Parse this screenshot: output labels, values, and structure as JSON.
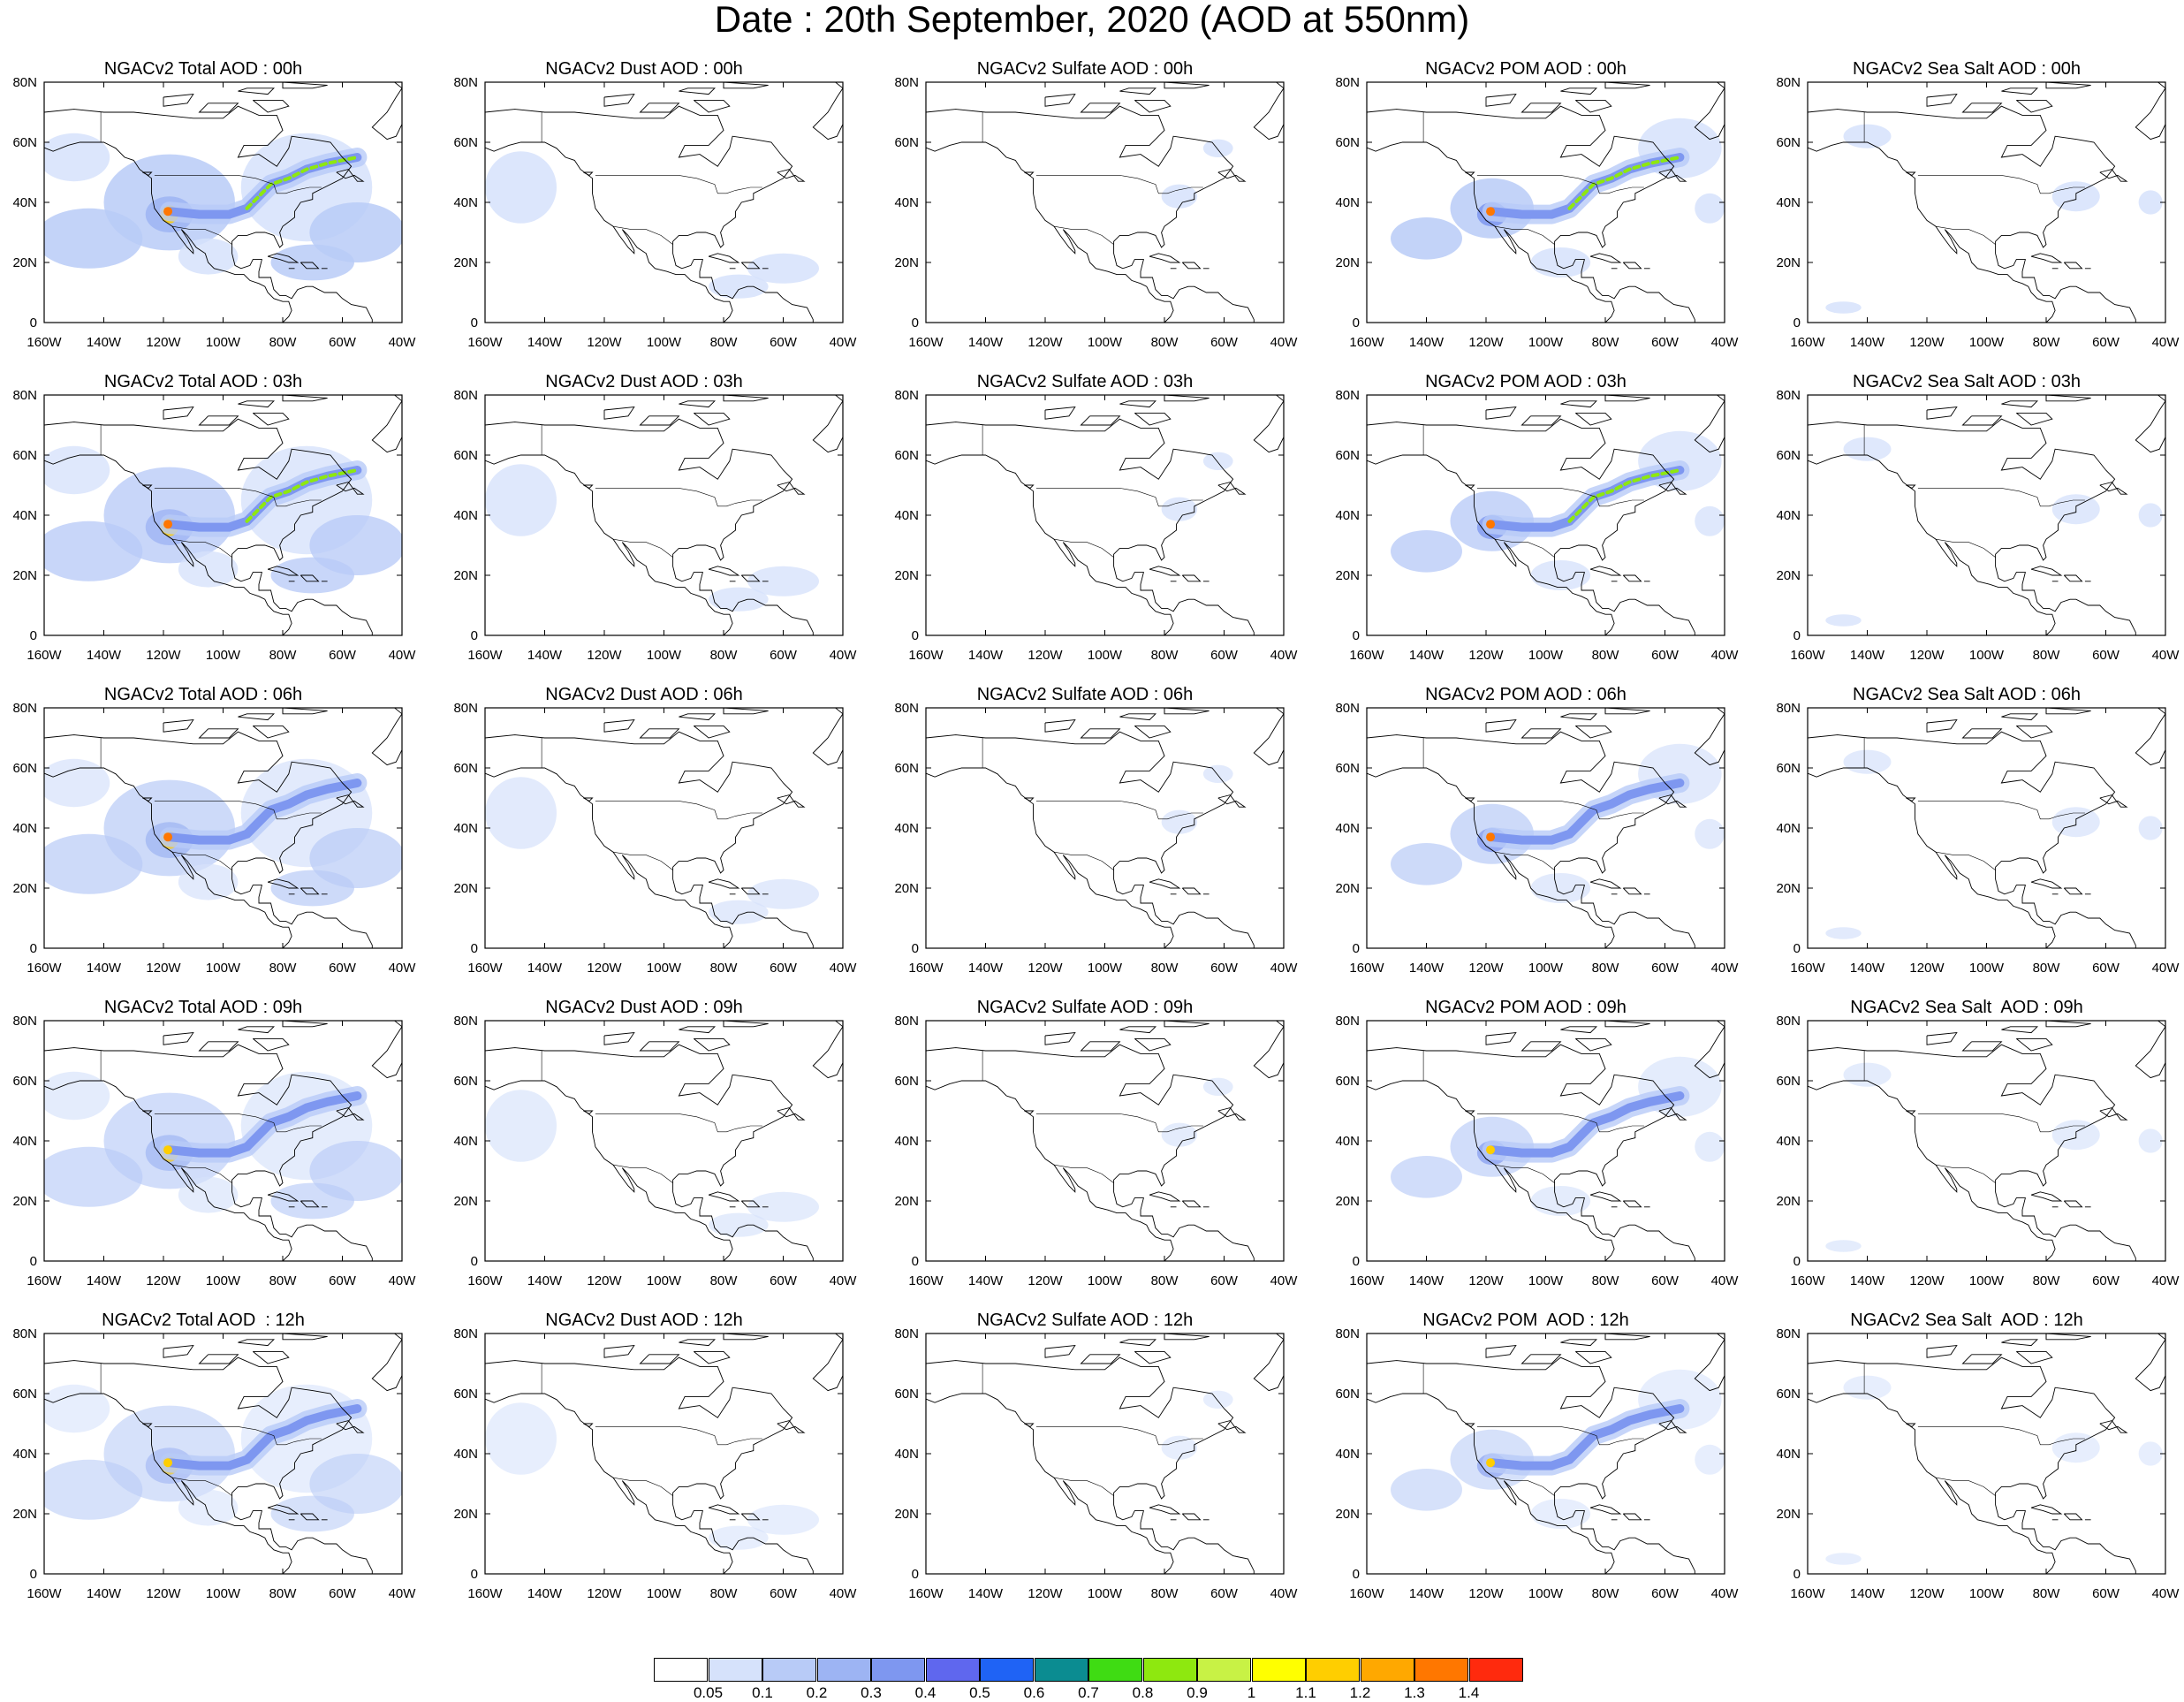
{
  "title": "Date : 20th September, 2020 (AOD at 550nm)",
  "panel_titles": [
    [
      "NGACv2 Total AOD : 00h",
      "NGACv2 Dust AOD : 00h",
      "NGACv2 Sulfate AOD : 00h",
      "NGACv2 POM AOD : 00h",
      "NGACv2 Sea Salt AOD : 00h"
    ],
    [
      "NGACv2 Total AOD : 03h",
      "NGACv2 Dust AOD : 03h",
      "NGACv2 Sulfate AOD : 03h",
      "NGACv2 POM AOD : 03h",
      "NGACv2 Sea Salt AOD : 03h"
    ],
    [
      "NGACv2 Total AOD : 06h",
      "NGACv2 Dust AOD : 06h",
      "NGACv2 Sulfate AOD : 06h",
      "NGACv2 POM AOD : 06h",
      "NGACv2 Sea Salt AOD : 06h"
    ],
    [
      "NGACv2 Total AOD : 09h",
      "NGACv2 Dust AOD : 09h",
      "NGACv2 Sulfate AOD : 09h",
      "NGACv2 POM AOD : 09h",
      "NGACv2 Sea Salt  AOD : 09h"
    ],
    [
      "NGACv2 Total AOD  : 12h",
      "NGACv2 Dust AOD : 12h",
      "NGACv2 Sulfate AOD : 12h",
      "NGACv2 POM  AOD : 12h",
      "NGACv2 Sea Salt  AOD : 12h"
    ]
  ],
  "map": {
    "lon_range": [
      -160,
      -40
    ],
    "lat_range": [
      0,
      80
    ],
    "lon_ticks": [
      "160W",
      "140W",
      "120W",
      "100W",
      "80W",
      "60W",
      "40W"
    ],
    "lat_ticks": [
      "0",
      "20N",
      "40N",
      "60N",
      "80N"
    ]
  },
  "colorbar": {
    "colors": [
      "#ffffff",
      "#d6e2fb",
      "#b8cbf7",
      "#9db4f3",
      "#7e97f0",
      "#5f67ee",
      "#1f63f5",
      "#0b8c91",
      "#3fdc13",
      "#8ee80f",
      "#c8f245",
      "#ffff00",
      "#ffce00",
      "#ffa800",
      "#ff7700",
      "#ff2a0d"
    ],
    "labels": [
      "0.05",
      "0.1",
      "0.2",
      "0.3",
      "0.4",
      "0.5",
      "0.6",
      "0.7",
      "0.8",
      "0.9",
      "1",
      "1.1",
      "1.2",
      "1.3",
      "1.4"
    ]
  }
}
